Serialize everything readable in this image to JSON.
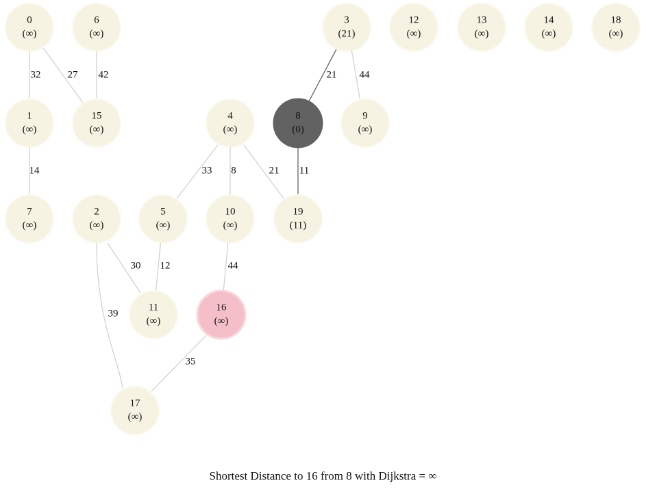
{
  "caption": "Shortest Distance to 16 from 8 with Dijkstra = ∞",
  "colors": {
    "node_fill": "#f7f3e2",
    "source_fill": "#626262",
    "target_fill": "#f5bfca",
    "edge": "#cfcfcf",
    "edge_active": "#707070"
  },
  "nodes": [
    {
      "id": "0",
      "dist": "(∞)"
    },
    {
      "id": "6",
      "dist": "(∞)"
    },
    {
      "id": "3",
      "dist": "(21)"
    },
    {
      "id": "12",
      "dist": "(∞)"
    },
    {
      "id": "13",
      "dist": "(∞)"
    },
    {
      "id": "14",
      "dist": "(∞)"
    },
    {
      "id": "18",
      "dist": "(∞)"
    },
    {
      "id": "1",
      "dist": "(∞)"
    },
    {
      "id": "15",
      "dist": "(∞)"
    },
    {
      "id": "4",
      "dist": "(∞)"
    },
    {
      "id": "8",
      "dist": "(0)",
      "role": "source"
    },
    {
      "id": "9",
      "dist": "(∞)"
    },
    {
      "id": "7",
      "dist": "(∞)"
    },
    {
      "id": "2",
      "dist": "(∞)"
    },
    {
      "id": "5",
      "dist": "(∞)"
    },
    {
      "id": "10",
      "dist": "(∞)"
    },
    {
      "id": "19",
      "dist": "(11)"
    },
    {
      "id": "11",
      "dist": "(∞)"
    },
    {
      "id": "16",
      "dist": "(∞)",
      "role": "target"
    },
    {
      "id": "17",
      "dist": "(∞)"
    }
  ],
  "edges": [
    {
      "from": "0",
      "to": "1",
      "weight": "32"
    },
    {
      "from": "0",
      "to": "15",
      "weight": "27"
    },
    {
      "from": "6",
      "to": "15",
      "weight": "42"
    },
    {
      "from": "3",
      "to": "8",
      "weight": "21",
      "active": true
    },
    {
      "from": "3",
      "to": "9",
      "weight": "44"
    },
    {
      "from": "1",
      "to": "7",
      "weight": "14"
    },
    {
      "from": "4",
      "to": "5",
      "weight": "33"
    },
    {
      "from": "4",
      "to": "10",
      "weight": "8"
    },
    {
      "from": "4",
      "to": "19",
      "weight": "21"
    },
    {
      "from": "8",
      "to": "19",
      "weight": "11",
      "active": true
    },
    {
      "from": "2",
      "to": "11",
      "weight": "30"
    },
    {
      "from": "5",
      "to": "11",
      "weight": "12"
    },
    {
      "from": "10",
      "to": "16",
      "weight": "44"
    },
    {
      "from": "2",
      "to": "17",
      "weight": "39"
    },
    {
      "from": "16",
      "to": "17",
      "weight": "35"
    }
  ]
}
